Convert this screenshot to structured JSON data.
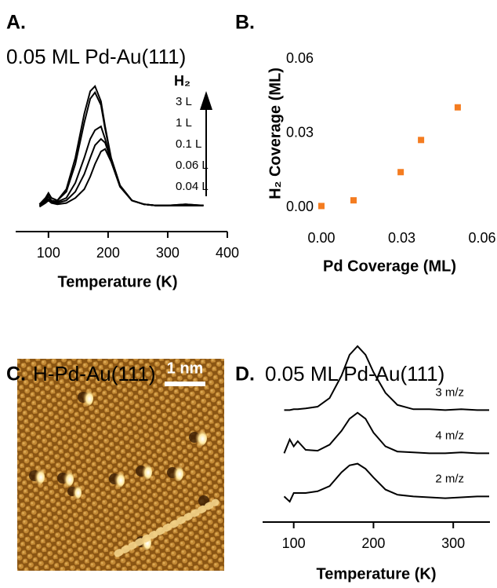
{
  "chart_data": [
    {
      "type": "line",
      "panel": "A.",
      "title": "0.05 ML Pd-Au(111)",
      "xlabel": "Temperature (K)",
      "legend_title": "H₂",
      "x": [
        85,
        95,
        100,
        105,
        115,
        130,
        145,
        160,
        170,
        178,
        188,
        195,
        205,
        220,
        240,
        260,
        280,
        300,
        330,
        360
      ],
      "xlim": [
        45,
        400
      ],
      "xticks": [
        100,
        200,
        300,
        400
      ],
      "ylim": [
        0,
        1
      ],
      "series": [
        {
          "name": "3 L",
          "color": "#000000",
          "values": [
            0.03,
            0.08,
            0.12,
            0.08,
            0.06,
            0.15,
            0.4,
            0.75,
            0.93,
            0.97,
            0.85,
            0.65,
            0.4,
            0.18,
            0.06,
            0.03,
            0.02,
            0.02,
            0.03,
            0.02
          ]
        },
        {
          "name": "1 L",
          "color": "#000000",
          "values": [
            0.03,
            0.07,
            0.11,
            0.08,
            0.06,
            0.13,
            0.35,
            0.68,
            0.87,
            0.92,
            0.82,
            0.63,
            0.4,
            0.18,
            0.06,
            0.03,
            0.02,
            0.02,
            0.03,
            0.02
          ]
        },
        {
          "name": "0.1 L",
          "color": "#000000",
          "values": [
            0.02,
            0.06,
            0.09,
            0.06,
            0.05,
            0.08,
            0.2,
            0.4,
            0.55,
            0.62,
            0.65,
            0.55,
            0.38,
            0.17,
            0.06,
            0.03,
            0.02,
            0.02,
            0.02,
            0.02
          ]
        },
        {
          "name": "0.06 L",
          "color": "#000000",
          "values": [
            0.02,
            0.05,
            0.07,
            0.05,
            0.04,
            0.06,
            0.13,
            0.27,
            0.4,
            0.5,
            0.55,
            0.52,
            0.38,
            0.17,
            0.06,
            0.03,
            0.02,
            0.02,
            0.02,
            0.02
          ]
        },
        {
          "name": "0.04 L",
          "color": "#000000",
          "values": [
            0.01,
            0.04,
            0.06,
            0.04,
            0.03,
            0.04,
            0.08,
            0.15,
            0.25,
            0.35,
            0.45,
            0.47,
            0.37,
            0.17,
            0.06,
            0.03,
            0.02,
            0.02,
            0.02,
            0.02
          ]
        }
      ]
    },
    {
      "type": "scatter",
      "panel": "B.",
      "xlabel": "Pd Coverage (ML)",
      "ylabel": "H₂ Coverage (ML)",
      "x": [
        0.0,
        0.012,
        0.0296,
        0.0372,
        0.0509
      ],
      "values": [
        0.0005,
        0.0028,
        0.0142,
        0.0272,
        0.0404
      ],
      "color": "#f47c20",
      "xlim": [
        0,
        0.06
      ],
      "ylim": [
        0,
        0.06
      ],
      "xticks": [
        {
          "value": 0,
          "label": "0.00"
        },
        {
          "value": 0.03,
          "label": "0.03"
        },
        {
          "value": 0.06,
          "label": "0.06"
        }
      ],
      "yticks": [
        {
          "value": 0,
          "label": "0.00"
        },
        {
          "value": 0.03,
          "label": "0.03"
        },
        {
          "value": 0.06,
          "label": "0.06"
        }
      ]
    },
    {
      "type": "line",
      "panel": "D.",
      "title": "0.05 ML Pd-Au(111)",
      "xlabel": "Temperature (K)",
      "x": [
        88,
        95,
        100,
        105,
        115,
        130,
        145,
        160,
        170,
        180,
        190,
        200,
        215,
        230,
        250,
        270,
        290,
        310,
        330,
        345
      ],
      "xlim": [
        61,
        346
      ],
      "xticks": [
        100,
        200,
        300
      ],
      "ylim": [
        0,
        1
      ],
      "series": [
        {
          "name": "3 m/z",
          "color": "#000000",
          "values": [
            0.58,
            0.58,
            0.585,
            0.585,
            0.59,
            0.6,
            0.65,
            0.78,
            0.9,
            0.95,
            0.9,
            0.8,
            0.68,
            0.61,
            0.585,
            0.585,
            0.58,
            0.585,
            0.58,
            0.58
          ]
        },
        {
          "name": "4 m/z",
          "color": "#000000",
          "values": [
            0.33,
            0.41,
            0.37,
            0.4,
            0.35,
            0.345,
            0.38,
            0.46,
            0.53,
            0.565,
            0.53,
            0.45,
            0.37,
            0.34,
            0.335,
            0.33,
            0.33,
            0.335,
            0.33,
            0.33
          ]
        },
        {
          "name": "2 m/z",
          "color": "#000000",
          "values": [
            0.08,
            0.05,
            0.1,
            0.1,
            0.1,
            0.11,
            0.14,
            0.22,
            0.26,
            0.27,
            0.24,
            0.19,
            0.12,
            0.09,
            0.08,
            0.075,
            0.07,
            0.075,
            0.08,
            0.08
          ]
        }
      ]
    }
  ],
  "image": {
    "panel": "C.",
    "title": "H-Pd-Au(111)",
    "scale_bar": "1 nm"
  }
}
